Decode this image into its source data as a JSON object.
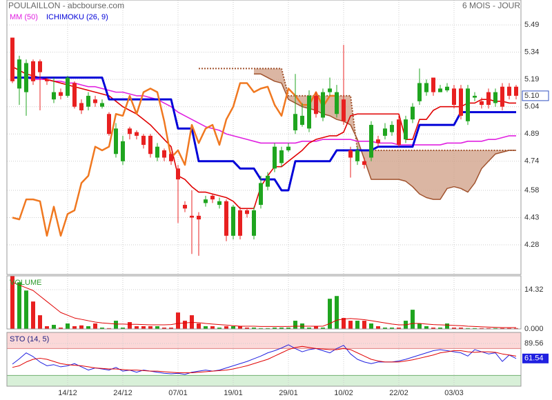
{
  "header": {
    "title": "POULAILLON - abcbourse.com",
    "period": "6 MOIS - JOUR"
  },
  "chart_data": [
    {
      "type": "candlestick",
      "xlim": [
        -0.8,
        73.7
      ],
      "xticks": [
        {
          "value": 8,
          "label": "14/12"
        },
        {
          "value": 16,
          "label": "24/12"
        },
        {
          "value": 24,
          "label": "07/01"
        },
        {
          "value": 32,
          "label": "19/01"
        },
        {
          "value": 40,
          "label": "29/01"
        },
        {
          "value": 48,
          "label": "10/02"
        },
        {
          "value": 56,
          "label": "22/02"
        },
        {
          "value": 64,
          "label": "03/03"
        }
      ],
      "ylim": [
        4.117,
        5.627
      ],
      "yticks": [
        5.49,
        5.34,
        5.19,
        5.04,
        4.89,
        4.74,
        4.58,
        4.43,
        4.28
      ],
      "grid": true,
      "up_color": "#1fa51f",
      "down_color": "#e82020",
      "open": [
        5.42,
        5.14,
        5.12,
        5.29,
        5.29,
        5.19,
        5.08,
        5.12,
        5.1,
        5.17,
        5.06,
        5.04,
        5.08,
        5.04,
        5.0,
        4.78,
        4.74,
        4.92,
        4.9,
        4.88,
        4.88,
        4.76,
        4.8,
        4.78,
        4.7,
        4.5,
        4.44,
        4.44,
        4.51,
        4.55,
        4.5,
        4.52,
        4.33,
        4.47,
        4.47,
        4.33,
        4.5,
        4.6,
        4.7,
        4.73,
        4.8,
        4.91,
        4.94,
        4.92,
        5.1,
        4.98,
        5.12,
        5.0,
        5.08,
        4.8,
        4.74,
        4.74,
        4.76,
        4.86,
        4.88,
        4.9,
        4.97,
        4.86,
        4.97,
        5.07,
        5.12,
        5.2,
        5.12,
        5.13,
        5.14,
        5.14,
        4.96,
        5.09,
        5.07,
        5.12,
        5.06,
        5.15,
        5.15,
        5.15
      ],
      "high": [
        5.42,
        5.32,
        5.3,
        5.3,
        5.3,
        5.2,
        5.2,
        5.14,
        5.21,
        5.18,
        5.08,
        5.12,
        5.1,
        5.08,
        5.01,
        4.95,
        4.88,
        4.93,
        4.91,
        4.89,
        4.89,
        4.84,
        4.81,
        4.79,
        4.72,
        4.52,
        4.58,
        4.46,
        4.55,
        4.56,
        4.54,
        4.53,
        4.5,
        4.49,
        4.48,
        4.49,
        4.66,
        4.68,
        4.84,
        4.82,
        4.84,
        5.22,
        5.06,
        5.13,
        5.12,
        5.14,
        5.2,
        5.16,
        5.38,
        4.82,
        4.82,
        4.76,
        4.96,
        4.88,
        4.95,
        4.96,
        4.99,
        4.99,
        5.06,
        5.25,
        5.19,
        5.2,
        5.16,
        5.17,
        5.16,
        5.16,
        5.16,
        5.12,
        5.09,
        5.14,
        5.14,
        5.17,
        5.17,
        5.16
      ],
      "low": [
        5.17,
        5.05,
        4.99,
        5.16,
        5.02,
        5.16,
        5.06,
        5.08,
        5.09,
        5.03,
        5.0,
        5.02,
        5.04,
        5.03,
        4.88,
        4.76,
        4.72,
        4.86,
        4.86,
        4.81,
        4.76,
        4.74,
        4.74,
        4.72,
        4.4,
        4.46,
        4.23,
        4.22,
        4.49,
        4.51,
        4.48,
        4.3,
        4.31,
        4.31,
        4.43,
        4.31,
        4.48,
        4.58,
        4.68,
        4.71,
        4.79,
        4.89,
        4.93,
        4.9,
        4.98,
        4.96,
        5.1,
        4.98,
        4.94,
        4.65,
        4.72,
        4.7,
        4.74,
        4.82,
        4.86,
        4.88,
        4.82,
        4.84,
        4.95,
        5.05,
        5.1,
        5.1,
        5.12,
        5.12,
        5.03,
        4.97,
        4.94,
        5.07,
        5.03,
        5.03,
        5.04,
        5.02,
        5.08,
        5.08
      ],
      "close": [
        5.18,
        5.3,
        5.28,
        5.18,
        5.23,
        5.18,
        5.12,
        5.1,
        5.2,
        5.04,
        5.02,
        5.1,
        5.06,
        5.06,
        4.89,
        4.92,
        4.85,
        4.89,
        4.88,
        4.83,
        4.78,
        4.82,
        4.76,
        4.74,
        4.64,
        4.48,
        4.43,
        4.42,
        4.53,
        4.53,
        4.52,
        4.33,
        4.49,
        4.33,
        4.45,
        4.47,
        4.62,
        4.66,
        4.82,
        4.8,
        4.82,
        5.0,
        4.99,
        5.1,
        5.0,
        5.12,
        5.14,
        5.12,
        4.96,
        4.76,
        4.8,
        4.72,
        4.94,
        4.84,
        4.92,
        4.94,
        4.83,
        4.97,
        5.04,
        5.17,
        5.17,
        5.12,
        5.14,
        5.15,
        5.05,
        4.99,
        5.14,
        5.1,
        5.05,
        5.05,
        5.12,
        5.04,
        5.1,
        5.1
      ],
      "close_label": "5.10",
      "cloud_color": "#cf9e84",
      "series": [
        {
          "color": "#a0522d",
          "width": 2,
          "dash": true,
          "cloud_edge": true,
          "values": [
            null,
            null,
            null,
            null,
            null,
            null,
            null,
            null,
            null,
            null,
            null,
            null,
            null,
            null,
            null,
            null,
            null,
            null,
            null,
            null,
            null,
            null,
            null,
            null,
            null,
            null,
            null,
            5.25,
            5.25,
            5.25,
            5.25,
            5.25,
            5.25,
            5.25,
            5.25,
            5.25,
            5.25,
            5.25,
            5.25,
            5.25,
            5.1,
            5.1,
            5.1,
            5.1,
            5.1,
            5.1,
            5.1,
            5.1,
            5.1,
            5.1,
            4.8,
            4.8,
            4.8,
            4.8,
            4.8,
            4.8,
            4.8,
            4.8,
            4.8,
            4.8,
            4.8,
            4.8,
            4.8,
            4.8,
            4.8,
            4.8,
            4.8,
            4.8,
            4.8,
            4.8,
            4.8,
            4.8,
            4.8,
            4.8
          ]
        },
        {
          "color": "#a0522d",
          "width": 1.5,
          "cloud_edge": true,
          "values": [
            null,
            null,
            null,
            null,
            null,
            null,
            null,
            null,
            null,
            null,
            null,
            null,
            null,
            null,
            null,
            null,
            null,
            null,
            null,
            null,
            null,
            null,
            null,
            null,
            null,
            null,
            null,
            null,
            null,
            null,
            null,
            null,
            null,
            null,
            null,
            5.22,
            5.22,
            5.2,
            5.18,
            5.17,
            5.08,
            5.06,
            5.04,
            5.03,
            5.02,
            5.0,
            4.99,
            4.97,
            4.96,
            4.94,
            4.86,
            4.75,
            4.64,
            4.64,
            4.64,
            4.64,
            4.64,
            4.63,
            4.6,
            4.56,
            4.54,
            4.53,
            4.53,
            4.59,
            4.6,
            4.59,
            4.57,
            4.62,
            4.7,
            4.74,
            4.78,
            4.79,
            4.8,
            4.8
          ]
        },
        {
          "name": "MM (50)",
          "color": "#e020e0",
          "width": 1.6,
          "values": [
            5.2,
            5.2,
            5.2,
            5.19,
            5.19,
            5.19,
            5.18,
            5.18,
            5.17,
            5.17,
            5.16,
            5.15,
            5.15,
            5.14,
            5.13,
            5.12,
            5.12,
            5.11,
            5.1,
            5.1,
            5.09,
            5.08,
            5.06,
            5.04,
            5.01,
            4.99,
            4.97,
            4.95,
            4.93,
            4.92,
            4.91,
            4.89,
            4.88,
            4.87,
            4.86,
            4.85,
            4.84,
            4.84,
            4.84,
            4.84,
            4.84,
            4.84,
            4.85,
            4.85,
            4.85,
            4.86,
            4.86,
            4.86,
            4.86,
            4.86,
            4.85,
            4.85,
            4.85,
            4.84,
            4.84,
            4.84,
            4.83,
            4.83,
            4.83,
            4.83,
            4.83,
            4.83,
            4.83,
            4.84,
            4.84,
            4.84,
            4.85,
            4.85,
            4.85,
            4.86,
            4.86,
            4.87,
            4.88,
            4.88
          ]
        },
        {
          "color": "#e00000",
          "width": 1.6,
          "values": [
            5.26,
            5.24,
            5.22,
            5.21,
            5.2,
            5.19,
            5.18,
            5.17,
            5.16,
            5.15,
            5.14,
            5.13,
            5.12,
            5.11,
            5.1,
            5.07,
            5.04,
            5.02,
            5.0,
            4.97,
            4.94,
            4.9,
            4.86,
            4.82,
            4.66,
            4.64,
            4.6,
            4.57,
            4.57,
            4.56,
            4.55,
            4.54,
            4.52,
            4.48,
            4.48,
            4.48,
            4.6,
            4.66,
            4.71,
            4.71,
            4.74,
            4.77,
            4.8,
            4.84,
            4.86,
            4.87,
            4.88,
            4.88,
            4.9,
            4.99,
            5.0,
            5.0,
            5.0,
            5.0,
            5.0,
            5.0,
            5.0,
            4.86,
            4.86,
            4.97,
            4.97,
            5.02,
            5.04,
            5.04,
            5.04,
            5.04,
            5.06,
            5.06,
            5.08,
            5.08,
            5.07,
            5.07,
            5.06,
            5.06
          ]
        },
        {
          "name": "ICHIMOKU (26, 9)",
          "color": "#0000d8",
          "width": 3,
          "values": [
            5.2,
            5.2,
            5.2,
            5.2,
            5.2,
            5.2,
            5.2,
            5.2,
            5.2,
            5.2,
            5.2,
            5.2,
            5.2,
            5.2,
            5.08,
            5.08,
            5.08,
            5.08,
            5.08,
            5.08,
            5.08,
            5.08,
            5.08,
            5.08,
            4.92,
            4.92,
            4.92,
            4.74,
            4.74,
            4.74,
            4.74,
            4.74,
            4.74,
            4.7,
            4.7,
            4.7,
            4.64,
            4.64,
            4.64,
            4.58,
            4.58,
            4.74,
            4.74,
            4.74,
            4.74,
            4.74,
            4.74,
            4.8,
            4.8,
            4.8,
            4.8,
            4.8,
            4.8,
            4.82,
            4.82,
            4.82,
            4.82,
            4.82,
            4.82,
            4.94,
            4.94,
            4.94,
            4.94,
            4.94,
            4.94,
            5.01,
            5.01,
            5.01,
            5.01,
            5.01,
            5.01,
            5.01,
            5.01,
            5.01
          ]
        },
        {
          "color": "#f07820",
          "width": 2.5,
          "values": [
            4.43,
            4.42,
            4.53,
            4.53,
            4.52,
            4.33,
            4.49,
            4.33,
            4.45,
            4.47,
            4.62,
            4.66,
            4.82,
            4.8,
            4.82,
            5.0,
            4.99,
            5.1,
            5.0,
            5.12,
            5.14,
            5.12,
            4.96,
            4.76,
            4.8,
            4.72,
            4.94,
            4.84,
            4.92,
            4.94,
            4.83,
            4.97,
            5.04,
            5.17,
            5.17,
            5.12,
            5.14,
            5.15,
            5.05,
            4.99,
            5.14,
            5.1,
            5.05,
            5.05,
            5.12,
            5.04,
            5.1,
            5.1,
            null,
            null,
            null,
            null,
            null,
            null,
            null,
            null,
            null,
            null,
            null,
            null,
            null,
            null,
            null,
            null,
            null,
            null,
            null,
            null,
            null,
            null,
            null,
            null,
            null,
            null
          ]
        }
      ]
    },
    {
      "type": "bar",
      "title": "VOLUME",
      "ylim": [
        0,
        19.34
      ],
      "yticks": [
        14.32,
        {
          "value": 0,
          "label": "0.000"
        }
      ],
      "values": [
        19.3,
        17,
        14,
        10,
        5,
        1,
        1.5,
        0.5,
        2,
        1,
        1.3,
        1,
        2,
        0.5,
        0.3,
        3,
        0.5,
        2.5,
        1,
        1,
        1,
        1,
        0.5,
        0.5,
        6,
        3,
        5,
        2,
        1,
        1,
        0.5,
        1,
        1,
        1,
        0.5,
        0.5,
        0.3,
        0.3,
        0.5,
        0.5,
        0.5,
        3,
        2,
        0.5,
        1,
        0.5,
        11,
        12,
        4,
        3,
        3,
        3,
        2,
        1,
        0.5,
        0.5,
        0.5,
        3,
        7,
        2,
        1,
        0.5,
        0.5,
        2,
        0.5,
        0.5,
        0.3,
        0.3,
        0.3,
        0.3,
        0.3,
        0.3,
        0.3,
        0.3
      ],
      "series": [
        {
          "color": "#e00000",
          "width": 1,
          "values": [
            17,
            16,
            15,
            14,
            12,
            10,
            8,
            6,
            5,
            4,
            3.5,
            3,
            2.5,
            2.2,
            2,
            1.8,
            1.8,
            1.7,
            1.7,
            1.6,
            1.5,
            1.5,
            1.5,
            1.6,
            2,
            2.2,
            2.4,
            2.3,
            2,
            1.8,
            1.6,
            1.4,
            1.2,
            1,
            1,
            1,
            0.9,
            0.9,
            0.9,
            0.9,
            0.9,
            1,
            1,
            1,
            1,
            1,
            2,
            3.2,
            3.6,
            3.8,
            3.6,
            3.4,
            3,
            2.6,
            2.2,
            1.8,
            1.5,
            1.5,
            2,
            2,
            1.8,
            1.6,
            1.5,
            1.4,
            1.3,
            1.2,
            1,
            0.9,
            0.8,
            0.7,
            0.6,
            0.5,
            0.5,
            0.5
          ]
        }
      ]
    },
    {
      "type": "line",
      "title": "STO (14, 5)",
      "ylim": [
        10,
        110
      ],
      "yticks": [
        89.56
      ],
      "bands": [
        {
          "from": 80,
          "to": 110,
          "color": "#fbd8d8"
        },
        {
          "from": 10,
          "to": 30,
          "color": "#d8f0d8"
        }
      ],
      "series": [
        {
          "color": "#2020e0",
          "width": 1,
          "values": [
            51,
            61,
            72,
            65,
            55,
            48,
            50,
            46,
            48,
            52,
            46,
            40,
            44,
            42,
            40,
            45,
            38,
            40,
            36,
            40,
            38,
            36,
            34,
            33,
            34,
            32,
            36,
            38,
            40,
            38,
            40,
            44,
            48,
            52,
            56,
            61,
            66,
            72,
            76,
            81,
            87,
            80,
            74,
            78,
            80,
            76,
            72,
            80,
            86,
            70,
            60,
            55,
            52,
            55,
            55,
            55,
            57,
            60,
            64,
            68,
            72,
            76,
            78,
            76,
            74,
            72,
            66,
            78,
            74,
            70,
            72,
            56,
            68,
            61.54
          ]
        },
        {
          "color": "#e00000",
          "width": 1,
          "values": [
            45,
            48,
            55,
            60,
            62,
            60,
            56,
            52,
            50,
            49,
            48,
            46,
            44,
            43,
            42,
            42,
            41,
            40,
            40,
            39,
            38,
            38,
            37,
            36,
            35,
            35,
            35,
            36,
            37,
            38,
            39,
            40,
            42,
            45,
            48,
            52,
            56,
            60,
            66,
            72,
            78,
            82,
            84,
            82,
            80,
            79,
            78,
            78,
            80,
            78,
            72,
            66,
            60,
            57,
            55,
            55,
            55,
            57,
            59,
            62,
            65,
            68,
            72,
            74,
            76,
            76,
            74,
            73,
            74,
            74,
            73,
            70,
            68,
            66
          ]
        }
      ]
    }
  ]
}
